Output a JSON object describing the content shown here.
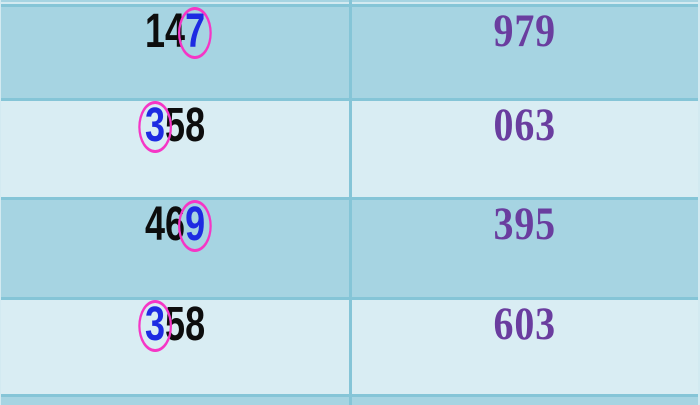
{
  "table": {
    "description": "number-pair-table",
    "rows": [
      {
        "left": {
          "digits": [
            "1",
            "4",
            "7"
          ],
          "highlight_index": 2,
          "highlight_digit": "7",
          "highlight_style": "blue-circled"
        },
        "right": "979"
      },
      {
        "left": {
          "digits": [
            "3",
            "5",
            "8"
          ],
          "highlight_index": 0,
          "highlight_digit": "3",
          "highlight_style": "blue-circled"
        },
        "right": "063"
      },
      {
        "left": {
          "digits": [
            "4",
            "6",
            "9"
          ],
          "highlight_index": 2,
          "highlight_digit": "9",
          "highlight_style": "blue-circled"
        },
        "right": "395"
      },
      {
        "left": {
          "digits": [
            "3",
            "5",
            "8"
          ],
          "highlight_index": 0,
          "highlight_digit": "3",
          "highlight_style": "blue-circled"
        },
        "right": "603"
      }
    ]
  },
  "colors": {
    "row_dark": "#a6d4e2",
    "row_light": "#d9edf3",
    "grid_line": "#85c5d7",
    "edge_light": "#d3eaf1",
    "digit_black": "#0d0d0d",
    "digit_blue": "#1d2be2",
    "ellipse_magenta": "#f536c6",
    "number_purple": "#6a3d9f"
  }
}
